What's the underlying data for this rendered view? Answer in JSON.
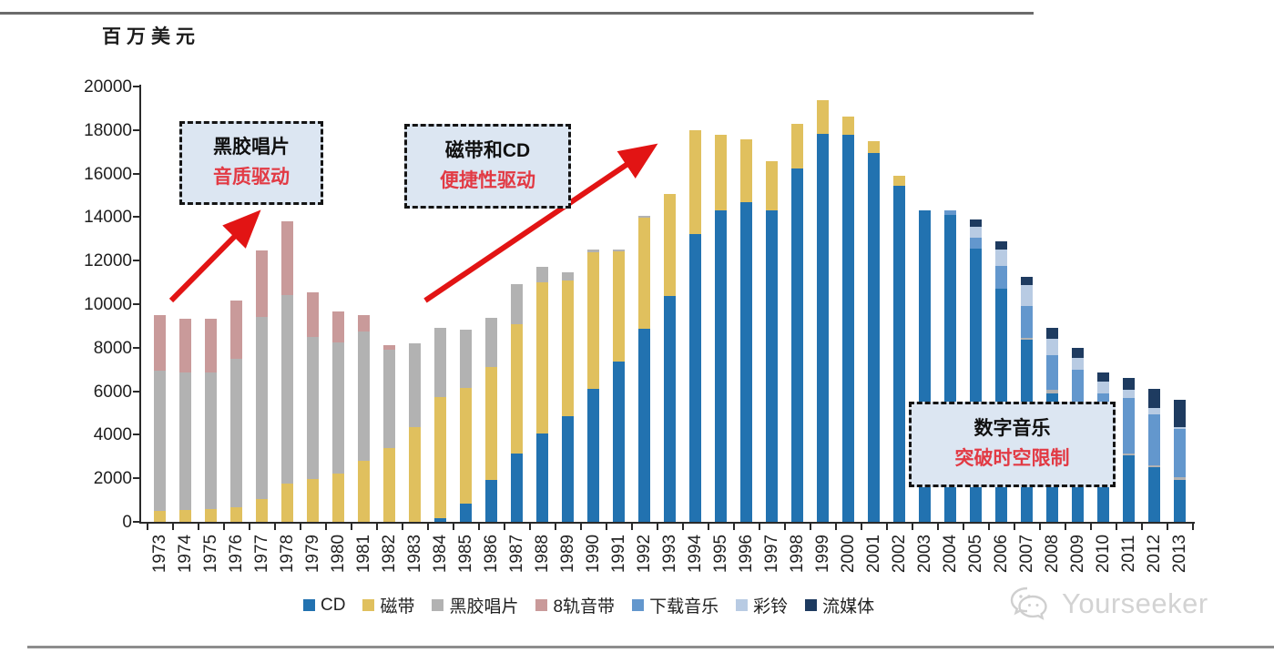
{
  "header": {
    "unit_label": "百万美元"
  },
  "chart_data": {
    "type": "bar",
    "stacked": true,
    "title": "",
    "ylabel": "百万美元",
    "xlabel": "",
    "ylim": [
      0,
      20000
    ],
    "ytick_step": 2000,
    "grid": false,
    "legend_position": "bottom",
    "categories": [
      "1973",
      "1974",
      "1975",
      "1976",
      "1977",
      "1978",
      "1979",
      "1980",
      "1981",
      "1982",
      "1983",
      "1984",
      "1985",
      "1986",
      "1987",
      "1988",
      "1989",
      "1990",
      "1991",
      "1992",
      "1993",
      "1994",
      "1995",
      "1996",
      "1997",
      "1998",
      "1999",
      "2000",
      "2001",
      "2002",
      "2003",
      "2004",
      "2005",
      "2006",
      "2007",
      "2008",
      "2009",
      "2010",
      "2011",
      "2012",
      "2013"
    ],
    "series": [
      {
        "name": "CD",
        "color": "#2272b0",
        "values": [
          0,
          0,
          0,
          0,
          0,
          0,
          0,
          0,
          0,
          0,
          0,
          170,
          830,
          1940,
          3150,
          4050,
          4840,
          6110,
          7370,
          8850,
          10380,
          13210,
          14290,
          14690,
          14320,
          16250,
          17840,
          17770,
          16940,
          15430,
          14300,
          14100,
          12550,
          10720,
          8370,
          5880,
          5280,
          3700,
          3040,
          2490,
          1940
        ]
      },
      {
        "name": "磁带",
        "color": "#e0c05e",
        "values": [
          500,
          550,
          600,
          650,
          1050,
          1750,
          1950,
          2200,
          2800,
          3400,
          4350,
          5570,
          5330,
          5180,
          5940,
          6950,
          6230,
          6290,
          5070,
          5130,
          4700,
          4770,
          3510,
          2870,
          2250,
          2040,
          1530,
          830,
          560,
          470,
          0,
          0,
          0,
          0,
          0,
          0,
          0,
          0,
          0,
          0,
          0
        ]
      },
      {
        "name": "黑胶唱片",
        "color": "#b2b2b2",
        "values": [
          6450,
          6300,
          6250,
          6850,
          8350,
          8650,
          6550,
          6050,
          5950,
          4500,
          3850,
          3180,
          2650,
          2250,
          1840,
          720,
          410,
          120,
          80,
          60,
          0,
          0,
          0,
          0,
          0,
          0,
          0,
          0,
          0,
          0,
          0,
          0,
          0,
          0,
          100,
          200,
          100,
          0,
          100,
          100,
          100
        ]
      },
      {
        "name": "8轨音带",
        "color": "#c99a9a",
        "values": [
          2550,
          2500,
          2500,
          2650,
          3050,
          3400,
          2050,
          1400,
          750,
          200,
          0,
          0,
          0,
          0,
          0,
          0,
          0,
          0,
          0,
          0,
          0,
          0,
          0,
          0,
          0,
          0,
          0,
          0,
          0,
          0,
          0,
          0,
          0,
          0,
          0,
          0,
          0,
          0,
          0,
          0,
          0
        ]
      },
      {
        "name": "下载音乐",
        "color": "#6397cd",
        "values": [
          0,
          0,
          0,
          0,
          0,
          0,
          0,
          0,
          0,
          0,
          0,
          0,
          0,
          0,
          0,
          0,
          0,
          0,
          0,
          0,
          0,
          0,
          0,
          0,
          0,
          0,
          0,
          0,
          0,
          0,
          0,
          200,
          500,
          1040,
          1450,
          1590,
          1590,
          2200,
          2560,
          2350,
          2210
        ]
      },
      {
        "name": "彩铃",
        "color": "#b8cbe3",
        "values": [
          0,
          0,
          0,
          0,
          0,
          0,
          0,
          0,
          0,
          0,
          0,
          0,
          0,
          0,
          0,
          0,
          0,
          0,
          0,
          0,
          0,
          0,
          0,
          0,
          0,
          0,
          0,
          0,
          0,
          0,
          0,
          0,
          500,
          770,
          970,
          760,
          550,
          550,
          350,
          280,
          100
        ]
      },
      {
        "name": "流媒体",
        "color": "#1e3b60",
        "values": [
          0,
          0,
          0,
          0,
          0,
          0,
          0,
          0,
          0,
          0,
          0,
          0,
          0,
          0,
          0,
          0,
          0,
          0,
          0,
          0,
          0,
          0,
          0,
          0,
          0,
          0,
          0,
          0,
          0,
          0,
          0,
          0,
          350,
          340,
          350,
          490,
          490,
          400,
          550,
          900,
          1250
        ]
      }
    ]
  },
  "annotations": [
    {
      "line1": "黑胶唱片",
      "line2": "音质驱动"
    },
    {
      "line1": "磁带和CD",
      "line2": "便捷性驱动"
    },
    {
      "line1": "数字音乐",
      "line2": "突破时空限制"
    }
  ],
  "colors": {
    "arrow_red": "#e21414",
    "annotation_bg": "#dce6f2",
    "annotation_red": "#e23a44",
    "axis": "#2a2a2a",
    "watermark": "#d3d3d3"
  },
  "watermark": {
    "icon": "wechat-icon",
    "text": "Yourseeker"
  }
}
